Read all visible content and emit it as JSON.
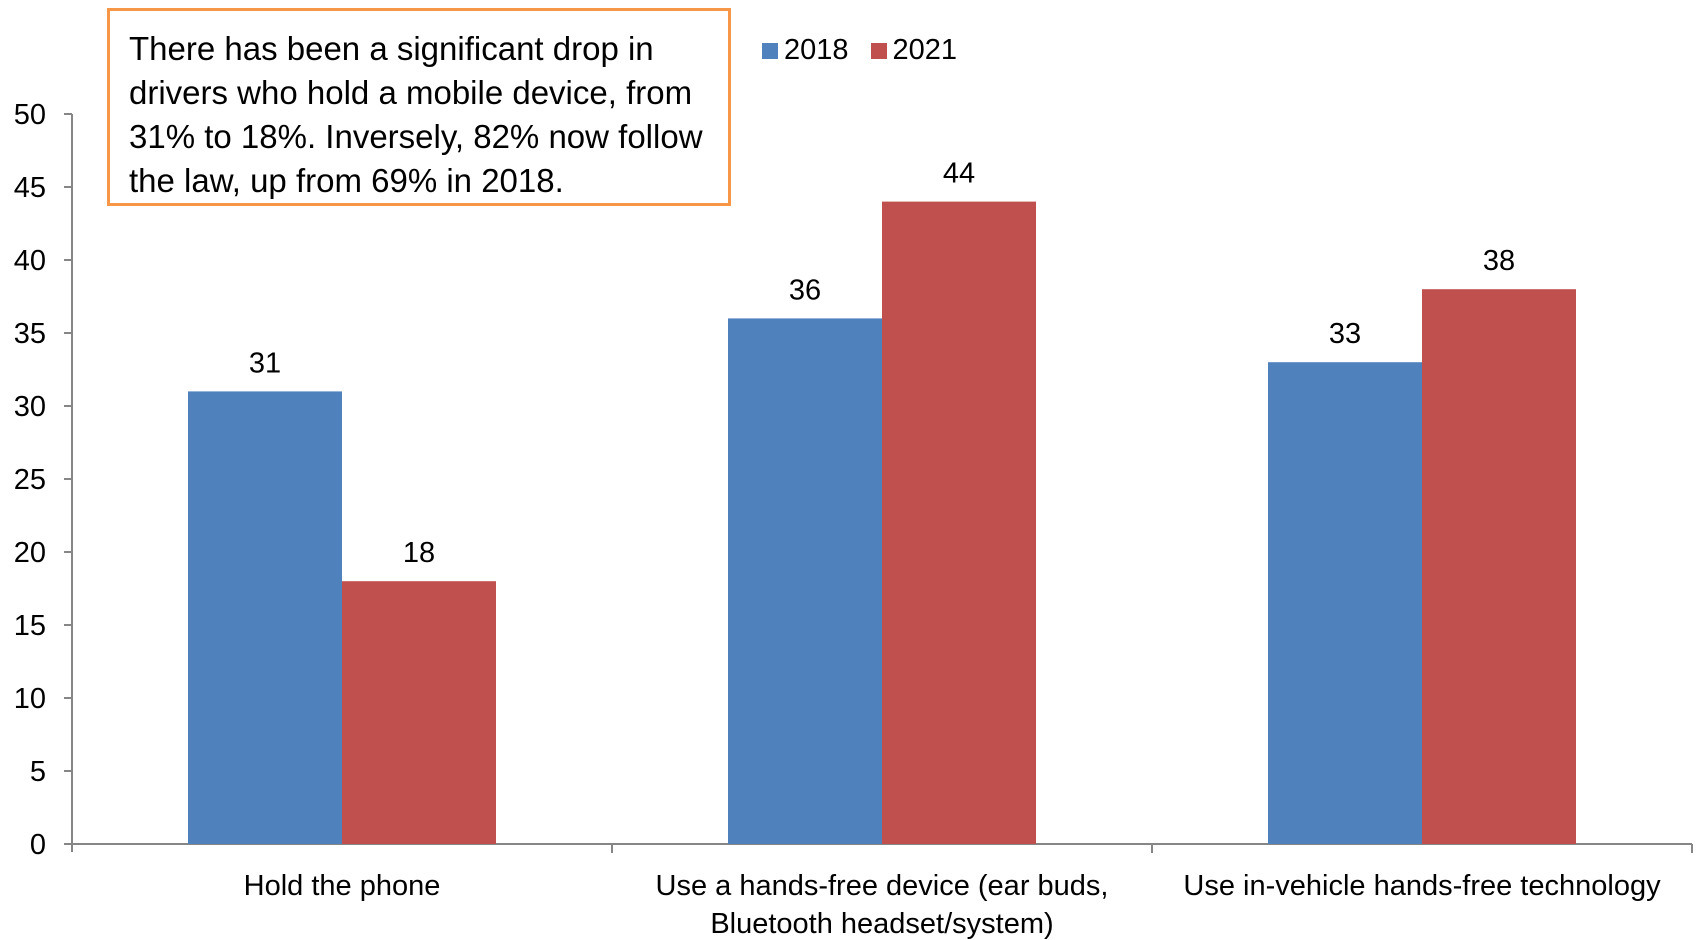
{
  "chart_data": {
    "type": "bar",
    "categories": [
      [
        "Hold the phone"
      ],
      [
        "Use a hands-free device (ear buds,",
        "Bluetooth headset/system)"
      ],
      [
        "Use in-vehicle hands-free technology"
      ]
    ],
    "series": [
      {
        "name": "2018",
        "color": "#4f81bd",
        "values": [
          31,
          36,
          33
        ]
      },
      {
        "name": "2021",
        "color": "#c0504d",
        "values": [
          18,
          44,
          38
        ]
      }
    ],
    "ylim": [
      0,
      50
    ],
    "yticks": [
      0,
      5,
      10,
      15,
      20,
      25,
      30,
      35,
      40,
      45,
      50
    ],
    "xlabel": "",
    "ylabel": "",
    "grid": false,
    "legend_position": "top",
    "annotation": "There has been a significant drop in drivers who hold a mobile device, from 31% to 18%. Inversely, 82% now follow the law, up from 69% in 2018.",
    "annotation_border_color": "#f79646"
  }
}
